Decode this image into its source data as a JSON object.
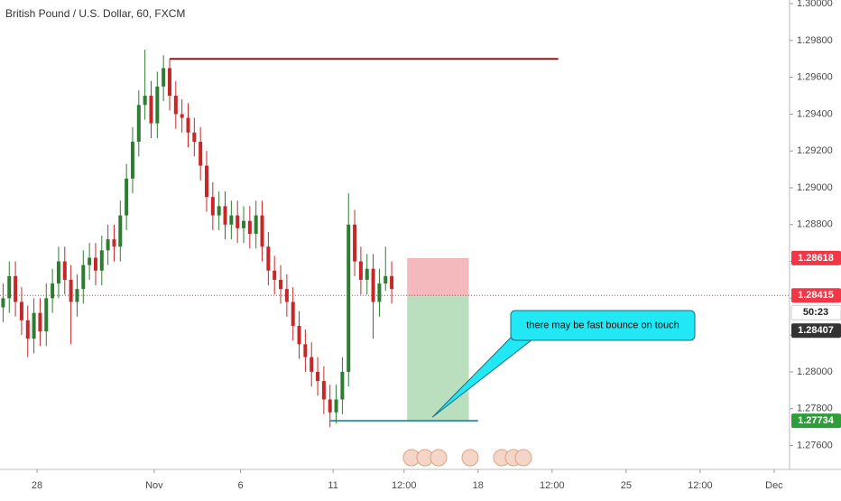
{
  "chart_data": {
    "type": "candlestick",
    "title": "British Pound / U.S. Dollar, 60, FXCM",
    "x": [
      1,
      3,
      5,
      7,
      9,
      11,
      13,
      15,
      17,
      19,
      21,
      23,
      25,
      27,
      29,
      31,
      33,
      35,
      37,
      39,
      41,
      43,
      45,
      47,
      49,
      51,
      53,
      55,
      57,
      59,
      61,
      63,
      65,
      67,
      69,
      71,
      73,
      75,
      77,
      79,
      81,
      83,
      85,
      87,
      89,
      91,
      93,
      95,
      97,
      99,
      101,
      103,
      105,
      107,
      109,
      111,
      113,
      115,
      117,
      119,
      121,
      123,
      125,
      127
    ],
    "open": [
      1.2835,
      1.284,
      1.2852,
      1.2838,
      1.2828,
      1.2818,
      1.2832,
      1.2822,
      1.284,
      1.2848,
      1.286,
      1.285,
      1.2838,
      1.2845,
      1.2858,
      1.2862,
      1.2855,
      1.2866,
      1.2872,
      1.2868,
      1.2885,
      1.2905,
      1.2925,
      1.2945,
      1.295,
      1.2935,
      1.2955,
      1.2965,
      1.295,
      1.294,
      1.2938,
      1.293,
      1.2925,
      1.2912,
      1.2895,
      1.2885,
      1.289,
      1.288,
      1.2885,
      1.2878,
      1.2882,
      1.2875,
      1.2885,
      1.2868,
      1.2855,
      1.285,
      1.2845,
      1.2838,
      1.2825,
      1.2815,
      1.2808,
      1.28,
      1.2795,
      1.2785,
      1.2778,
      1.2785,
      1.28,
      1.288,
      1.286,
      1.285,
      1.2856,
      1.2838,
      1.2848,
      1.2852
    ],
    "high": [
      1.2848,
      1.286,
      1.286,
      1.2846,
      1.2836,
      1.284,
      1.284,
      1.2848,
      1.2856,
      1.2868,
      1.2868,
      1.2858,
      1.2853,
      1.2866,
      1.287,
      1.287,
      1.2874,
      1.288,
      1.288,
      1.2893,
      1.2913,
      1.2933,
      1.2953,
      1.2975,
      1.2958,
      1.2963,
      1.2972,
      1.297,
      1.2958,
      1.2948,
      1.2946,
      1.2938,
      1.2933,
      1.292,
      1.2903,
      1.2898,
      1.2898,
      1.2893,
      1.2893,
      1.289,
      1.289,
      1.2893,
      1.2893,
      1.2876,
      1.2863,
      1.2858,
      1.2853,
      1.2846,
      1.2833,
      1.2823,
      1.2816,
      1.2808,
      1.2803,
      1.2793,
      1.2793,
      1.2808,
      1.2897,
      1.2888,
      1.2868,
      1.2864,
      1.2864,
      1.2856,
      1.2868,
      1.286
    ],
    "low": [
      1.2827,
      1.2832,
      1.283,
      1.282,
      1.2808,
      1.281,
      1.2814,
      1.2814,
      1.2832,
      1.284,
      1.2842,
      1.2815,
      1.283,
      1.2837,
      1.285,
      1.2847,
      1.2847,
      1.2858,
      1.286,
      1.286,
      1.2877,
      1.2897,
      1.2917,
      1.2937,
      1.2927,
      1.2927,
      1.2947,
      1.2942,
      1.2932,
      1.293,
      1.2922,
      1.2917,
      1.2904,
      1.2887,
      1.2877,
      1.2877,
      1.2872,
      1.2872,
      1.287,
      1.287,
      1.2867,
      1.2867,
      1.286,
      1.2847,
      1.2842,
      1.2837,
      1.283,
      1.2817,
      1.2807,
      1.28,
      1.2792,
      1.2787,
      1.2777,
      1.277,
      1.2772,
      1.2777,
      1.2792,
      1.2852,
      1.2842,
      1.2842,
      1.2818,
      1.283,
      1.2844,
      1.2837
    ],
    "close": [
      1.284,
      1.2852,
      1.2838,
      1.2828,
      1.2818,
      1.2832,
      1.2822,
      1.284,
      1.2848,
      1.286,
      1.285,
      1.2838,
      1.2845,
      1.2858,
      1.2862,
      1.2855,
      1.2866,
      1.2872,
      1.2868,
      1.2885,
      1.2905,
      1.2925,
      1.2945,
      1.295,
      1.2935,
      1.2955,
      1.2965,
      1.295,
      1.294,
      1.2938,
      1.293,
      1.2925,
      1.2912,
      1.2895,
      1.2885,
      1.289,
      1.288,
      1.2885,
      1.2878,
      1.2882,
      1.2875,
      1.2885,
      1.2868,
      1.2855,
      1.285,
      1.2845,
      1.2838,
      1.2825,
      1.2815,
      1.2808,
      1.28,
      1.2795,
      1.2785,
      1.2778,
      1.2785,
      1.28,
      1.288,
      1.286,
      1.285,
      1.2856,
      1.2838,
      1.2848,
      1.2852,
      1.2845
    ],
    "up_color": "#2e7d32",
    "down_color": "#c62828",
    "xlim": [
      0,
      256
    ],
    "xticks": [
      {
        "value": 12,
        "label": "28"
      },
      {
        "value": 50,
        "label": "Nov"
      },
      {
        "value": 78,
        "label": "6"
      },
      {
        "value": 108,
        "label": "11"
      },
      {
        "value": 131,
        "label": "12:00"
      },
      {
        "value": 155,
        "label": "18"
      },
      {
        "value": 179,
        "label": "12:00"
      },
      {
        "value": 203,
        "label": "25"
      },
      {
        "value": 227,
        "label": "12:00"
      },
      {
        "value": 251,
        "label": "Dec"
      }
    ],
    "ylim": [
      1.2747,
      1.3002
    ],
    "yticks": [
      {
        "value": 1.276,
        "label": "1.27600"
      },
      {
        "value": 1.278,
        "label": "1.27800"
      },
      {
        "value": 1.28,
        "label": "1.28000"
      },
      {
        "value": 1.282,
        "label": "1.28200"
      },
      {
        "value": 1.284,
        "label": "1.28400"
      },
      {
        "value": 1.286,
        "label": "1.28600"
      },
      {
        "value": 1.288,
        "label": "1.28800"
      },
      {
        "value": 1.29,
        "label": "1.29000"
      },
      {
        "value": 1.292,
        "label": "1.29200"
      },
      {
        "value": 1.294,
        "label": "1.29400"
      },
      {
        "value": 1.296,
        "label": "1.29600"
      },
      {
        "value": 1.298,
        "label": "1.29800"
      },
      {
        "value": 1.3,
        "label": "1.30000"
      }
    ],
    "last_price": 1.28415,
    "last_price_color": "#f23645",
    "countdown": "50:23",
    "bid_price": 1.28407,
    "resistance": {
      "value": 1.297,
      "x": [
        55,
        181
      ],
      "color": "#8b1a1a"
    },
    "support": {
      "x": [
        107,
        155
      ],
      "color": "#3d8fb0"
    },
    "position": {
      "x": [
        132,
        152
      ],
      "stop": 1.28618,
      "entry": 1.2841,
      "target": 1.27734,
      "stop_color": "#f4b9bd",
      "target_color": "#b9dfbe"
    },
    "callout": "there may be fast bounce on touch"
  }
}
